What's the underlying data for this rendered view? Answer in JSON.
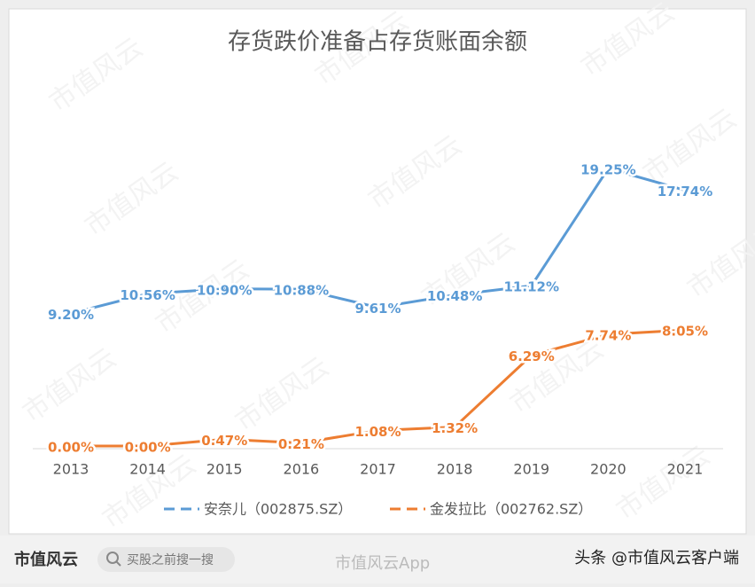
{
  "chart_data": {
    "type": "line",
    "title": "存货跌价准备占存货账面余额",
    "categories": [
      "2013",
      "2014",
      "2015",
      "2016",
      "2017",
      "2018",
      "2019",
      "2020",
      "2021"
    ],
    "series": [
      {
        "name": "安奈儿（002875.SZ）",
        "color": "#5b9bd5",
        "values": [
          9.2,
          10.56,
          10.9,
          10.88,
          9.61,
          10.48,
          11.12,
          19.25,
          17.74
        ],
        "value_labels": [
          "9.20%",
          "10.56%",
          "10.90%",
          "10.88%",
          "9.61%",
          "10.48%",
          "11.12%",
          "19.25%",
          "17.74%"
        ]
      },
      {
        "name": "金发拉比（002762.SZ）",
        "color": "#ed7d31",
        "values": [
          0,
          0,
          0.47,
          0.21,
          1.08,
          1.32,
          6.29,
          7.74,
          8.05
        ],
        "value_labels": [
          "0.00%",
          "0.00%",
          "0.47%",
          "0.21%",
          "1.08%",
          "1.32%",
          "6.29%",
          "7.74%",
          "8.05%"
        ]
      }
    ],
    "legend": "bottom",
    "grid": false
  },
  "watermark": "市值风云",
  "footer": {
    "logo": "市值风云",
    "search": "买股之前搜一搜",
    "app": "市值风云App",
    "credit": "头条 @市值风云客户端"
  }
}
